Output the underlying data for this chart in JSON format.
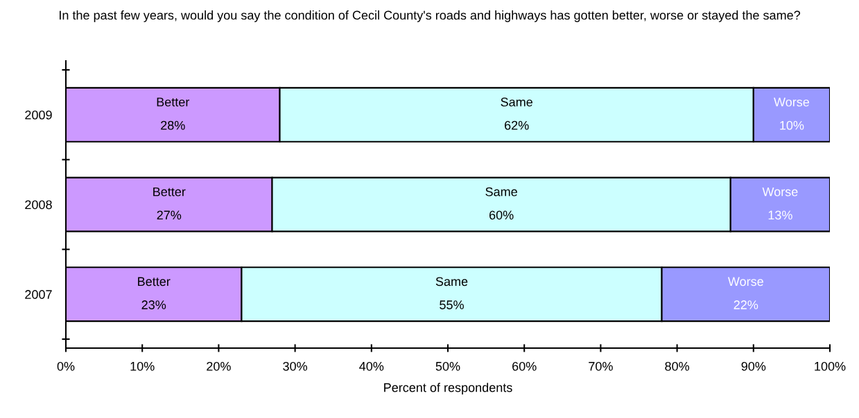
{
  "chart_data": {
    "type": "bar",
    "orientation": "horizontal",
    "stacked": true,
    "title": "In the past few years, would you say the condition of Cecil County's roads and highways has gotten better, worse or stayed the same?",
    "xlabel": "Percent of respondents",
    "categories": [
      "2009",
      "2008",
      "2007"
    ],
    "series": [
      {
        "name": "Better",
        "color": "#cc99ff",
        "values": [
          28,
          27,
          23
        ],
        "value_labels": [
          "28%",
          "27%",
          "23%"
        ]
      },
      {
        "name": "Same",
        "color": "#ccffff",
        "values": [
          62,
          60,
          55
        ],
        "value_labels": [
          "62%",
          "60%",
          "55%"
        ]
      },
      {
        "name": "Worse",
        "color": "#9999ff",
        "values": [
          10,
          13,
          22
        ],
        "value_labels": [
          "10%",
          "13%",
          "22%"
        ]
      }
    ],
    "xlim": [
      0,
      100
    ],
    "xticks": [
      {
        "value": 0,
        "label": "0%"
      },
      {
        "value": 10,
        "label": "10%"
      },
      {
        "value": 20,
        "label": "20%"
      },
      {
        "value": 30,
        "label": "30%"
      },
      {
        "value": 40,
        "label": "40%"
      },
      {
        "value": 50,
        "label": "50%"
      },
      {
        "value": 60,
        "label": "60%"
      },
      {
        "value": 70,
        "label": "70%"
      },
      {
        "value": 80,
        "label": "80%"
      },
      {
        "value": 90,
        "label": "90%"
      },
      {
        "value": 100,
        "label": "100%"
      }
    ],
    "grid": false
  }
}
